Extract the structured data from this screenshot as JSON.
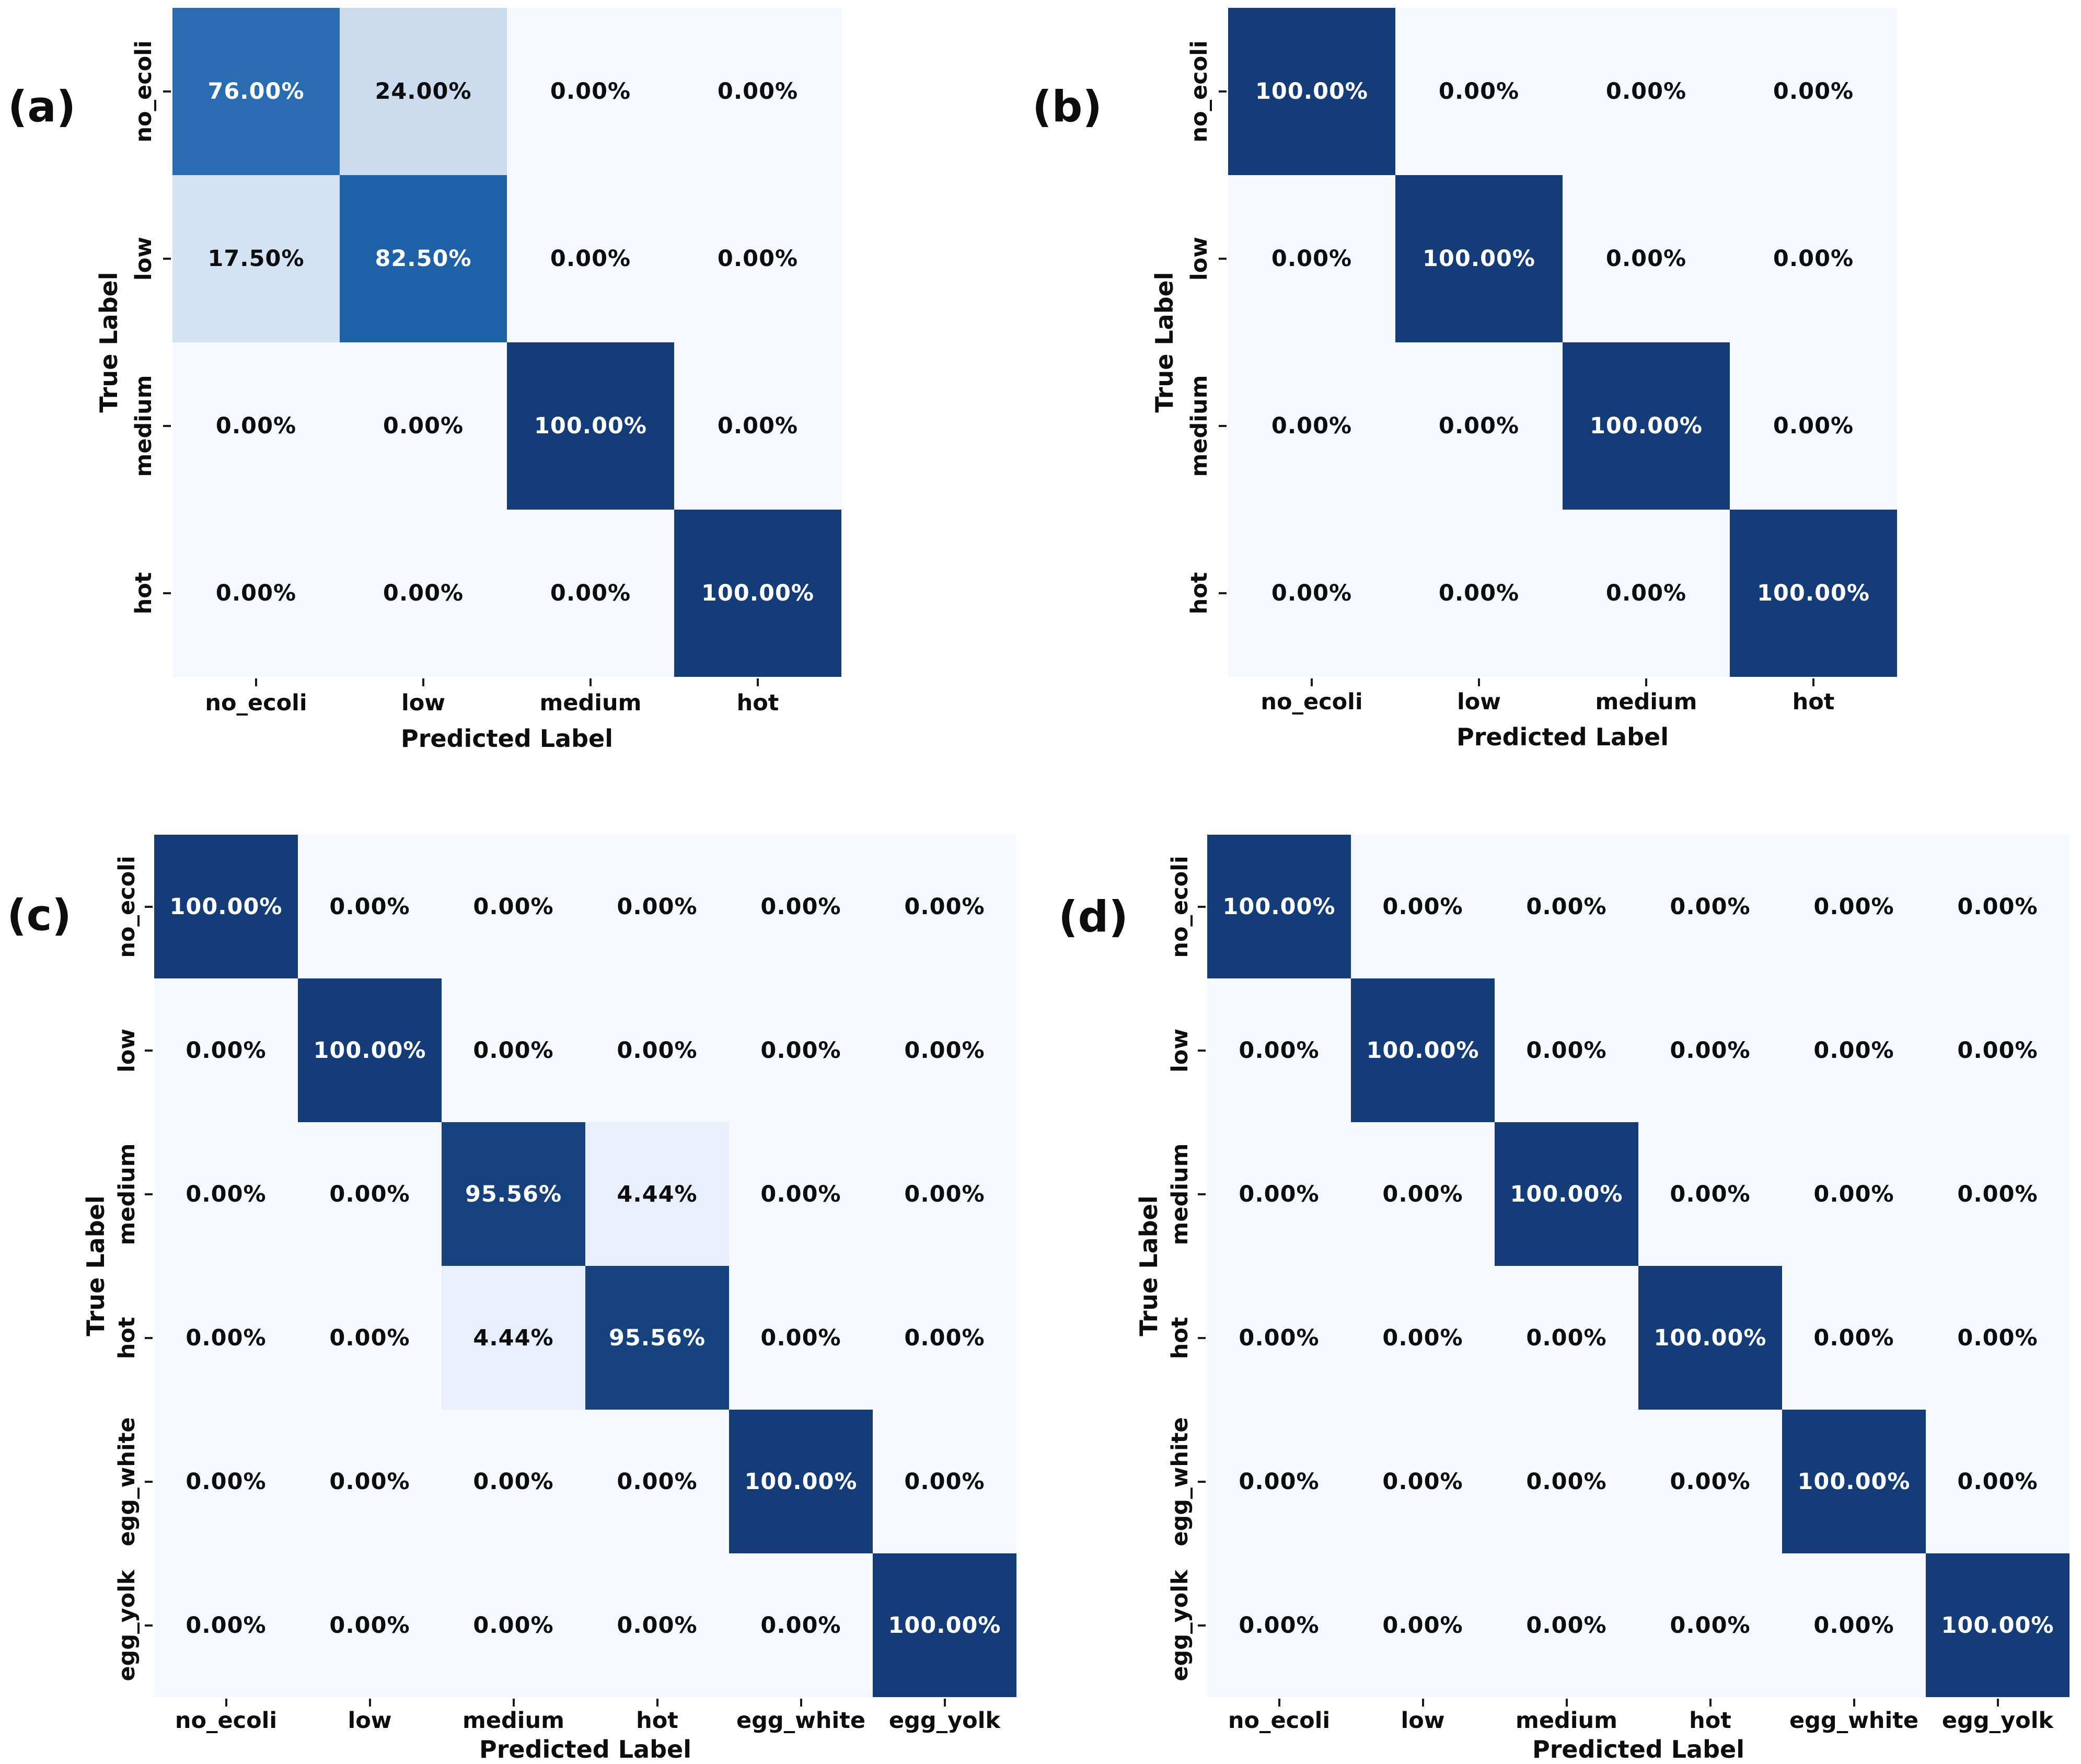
{
  "figure": {
    "description": "Four confusion matrix heatmaps labeled (a), (b), (c), (d)",
    "x_axis_title": "Predicted Label",
    "y_axis_title": "True Label"
  },
  "style": {
    "background": "#ffffff",
    "colormap": "Blues",
    "value_colors": {
      "0": "#f5f8fc",
      "4.44": "#e9effa",
      "17.5": "#d4e3f3",
      "24": "#cbdcf1",
      "76": "#2a6cb1",
      "82.5": "#1d61a9",
      "95.56": "#15417d",
      "100": "#143c78"
    },
    "dark_text": "#0d0d0d",
    "light_text": "#ffffff",
    "white_text_threshold_percent": 50
  },
  "chart_data": [
    {
      "type": "heatmap",
      "panel_label": "(a)",
      "xlabel": "Predicted Label",
      "ylabel": "True Label",
      "x_categories": [
        "no_ecoli",
        "low",
        "medium",
        "hot"
      ],
      "y_categories": [
        "no_ecoli",
        "low",
        "medium",
        "hot"
      ],
      "values_percent": [
        [
          76.0,
          24.0,
          0.0,
          0.0
        ],
        [
          17.5,
          82.5,
          0.0,
          0.0
        ],
        [
          0.0,
          0.0,
          100.0,
          0.0
        ],
        [
          0.0,
          0.0,
          0.0,
          100.0
        ]
      ],
      "cell_labels": [
        [
          "76.00%",
          "24.00%",
          "0.00%",
          "0.00%"
        ],
        [
          "17.50%",
          "82.50%",
          "0.00%",
          "0.00%"
        ],
        [
          "0.00%",
          "0.00%",
          "100.00%",
          "0.00%"
        ],
        [
          "0.00%",
          "0.00%",
          "0.00%",
          "100.00%"
        ]
      ]
    },
    {
      "type": "heatmap",
      "panel_label": "(b)",
      "xlabel": "Predicted Label",
      "ylabel": "True Label",
      "x_categories": [
        "no_ecoli",
        "low",
        "medium",
        "hot"
      ],
      "y_categories": [
        "no_ecoli",
        "low",
        "medium",
        "hot"
      ],
      "values_percent": [
        [
          100.0,
          0.0,
          0.0,
          0.0
        ],
        [
          0.0,
          100.0,
          0.0,
          0.0
        ],
        [
          0.0,
          0.0,
          100.0,
          0.0
        ],
        [
          0.0,
          0.0,
          0.0,
          100.0
        ]
      ],
      "cell_labels": [
        [
          "100.00%",
          "0.00%",
          "0.00%",
          "0.00%"
        ],
        [
          "0.00%",
          "100.00%",
          "0.00%",
          "0.00%"
        ],
        [
          "0.00%",
          "0.00%",
          "100.00%",
          "0.00%"
        ],
        [
          "0.00%",
          "0.00%",
          "0.00%",
          "100.00%"
        ]
      ]
    },
    {
      "type": "heatmap",
      "panel_label": "(c)",
      "xlabel": "Predicted Label",
      "ylabel": "True Label",
      "x_categories": [
        "no_ecoli",
        "low",
        "medium",
        "hot",
        "egg_white",
        "egg_yolk"
      ],
      "y_categories": [
        "no_ecoli",
        "low",
        "medium",
        "hot",
        "egg_white",
        "egg_yolk"
      ],
      "values_percent": [
        [
          100.0,
          0.0,
          0.0,
          0.0,
          0.0,
          0.0
        ],
        [
          0.0,
          100.0,
          0.0,
          0.0,
          0.0,
          0.0
        ],
        [
          0.0,
          0.0,
          95.56,
          4.44,
          0.0,
          0.0
        ],
        [
          0.0,
          0.0,
          4.44,
          95.56,
          0.0,
          0.0
        ],
        [
          0.0,
          0.0,
          0.0,
          0.0,
          100.0,
          0.0
        ],
        [
          0.0,
          0.0,
          0.0,
          0.0,
          0.0,
          100.0
        ]
      ],
      "cell_labels": [
        [
          "100.00%",
          "0.00%",
          "0.00%",
          "0.00%",
          "0.00%",
          "0.00%"
        ],
        [
          "0.00%",
          "100.00%",
          "0.00%",
          "0.00%",
          "0.00%",
          "0.00%"
        ],
        [
          "0.00%",
          "0.00%",
          "95.56%",
          "4.44%",
          "0.00%",
          "0.00%"
        ],
        [
          "0.00%",
          "0.00%",
          "4.44%",
          "95.56%",
          "0.00%",
          "0.00%"
        ],
        [
          "0.00%",
          "0.00%",
          "0.00%",
          "0.00%",
          "100.00%",
          "0.00%"
        ],
        [
          "0.00%",
          "0.00%",
          "0.00%",
          "0.00%",
          "0.00%",
          "100.00%"
        ]
      ]
    },
    {
      "type": "heatmap",
      "panel_label": "(d)",
      "xlabel": "Predicted Label",
      "ylabel": "True Label",
      "x_categories": [
        "no_ecoli",
        "low",
        "medium",
        "hot",
        "egg_white",
        "egg_yolk"
      ],
      "y_categories": [
        "no_ecoli",
        "low",
        "medium",
        "hot",
        "egg_white",
        "egg_yolk"
      ],
      "values_percent": [
        [
          100.0,
          0.0,
          0.0,
          0.0,
          0.0,
          0.0
        ],
        [
          0.0,
          100.0,
          0.0,
          0.0,
          0.0,
          0.0
        ],
        [
          0.0,
          0.0,
          100.0,
          0.0,
          0.0,
          0.0
        ],
        [
          0.0,
          0.0,
          0.0,
          100.0,
          0.0,
          0.0
        ],
        [
          0.0,
          0.0,
          0.0,
          0.0,
          100.0,
          0.0
        ],
        [
          0.0,
          0.0,
          0.0,
          0.0,
          0.0,
          100.0
        ]
      ],
      "cell_labels": [
        [
          "100.00%",
          "0.00%",
          "0.00%",
          "0.00%",
          "0.00%",
          "0.00%"
        ],
        [
          "0.00%",
          "100.00%",
          "0.00%",
          "0.00%",
          "0.00%",
          "0.00%"
        ],
        [
          "0.00%",
          "0.00%",
          "100.00%",
          "0.00%",
          "0.00%",
          "0.00%"
        ],
        [
          "0.00%",
          "0.00%",
          "0.00%",
          "100.00%",
          "0.00%",
          "0.00%"
        ],
        [
          "0.00%",
          "0.00%",
          "0.00%",
          "0.00%",
          "100.00%",
          "0.00%"
        ],
        [
          "0.00%",
          "0.00%",
          "0.00%",
          "0.00%",
          "0.00%",
          "100.00%"
        ]
      ]
    }
  ]
}
